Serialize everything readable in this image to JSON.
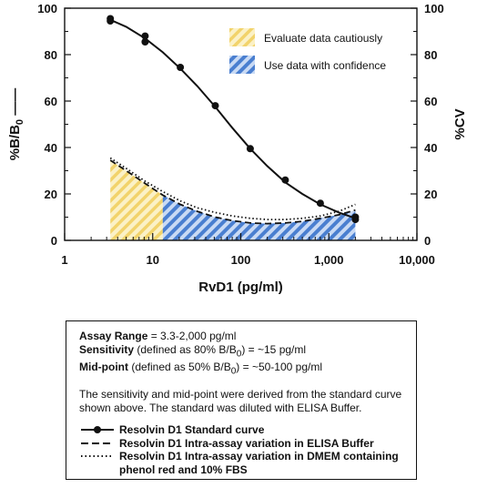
{
  "chart_data": {
    "type": "line",
    "x_scale": "log",
    "xlim": [
      1,
      10000
    ],
    "x_ticks": [
      "1",
      "10",
      "100",
      "1,000",
      "10,000"
    ],
    "x_tick_values": [
      1,
      10,
      100,
      1000,
      10000
    ],
    "xlabel": "RvD1 (pg/ml)",
    "ylabel_left_main": "%B/B",
    "ylabel_left_sub": "0",
    "ylabel_left_suffix": " ——",
    "ylabel_right": "%CV",
    "ylim": [
      0,
      100
    ],
    "y_ticks": [
      "0",
      "20",
      "40",
      "60",
      "80",
      "100"
    ],
    "y_tick_values": [
      0,
      20,
      40,
      60,
      80,
      100
    ],
    "standard_points": [
      {
        "x": 3.3,
        "y": 95.5
      },
      {
        "x": 3.3,
        "y": 94.5
      },
      {
        "x": 8.2,
        "y": 88.0
      },
      {
        "x": 8.2,
        "y": 85.5
      },
      {
        "x": 20.6,
        "y": 74.5
      },
      {
        "x": 51.4,
        "y": 58.0
      },
      {
        "x": 128,
        "y": 39.5
      },
      {
        "x": 320,
        "y": 26.0
      },
      {
        "x": 800,
        "y": 16.0
      },
      {
        "x": 2000,
        "y": 10.0
      },
      {
        "x": 2000,
        "y": 9.0
      }
    ],
    "standard_curve": [
      {
        "x": 3.3,
        "y": 95.0
      },
      {
        "x": 5,
        "y": 92.0
      },
      {
        "x": 8.2,
        "y": 87.0
      },
      {
        "x": 13,
        "y": 81.0
      },
      {
        "x": 20.6,
        "y": 74.0
      },
      {
        "x": 32,
        "y": 66.5
      },
      {
        "x": 51.4,
        "y": 57.5
      },
      {
        "x": 80,
        "y": 48.5
      },
      {
        "x": 128,
        "y": 39.5
      },
      {
        "x": 200,
        "y": 32.0
      },
      {
        "x": 320,
        "y": 25.0
      },
      {
        "x": 500,
        "y": 20.0
      },
      {
        "x": 800,
        "y": 15.5
      },
      {
        "x": 1300,
        "y": 12.0
      },
      {
        "x": 2000,
        "y": 9.5
      }
    ],
    "series": [
      {
        "name": "Resolvin D1 Intra-assay variation in ELISA Buffer",
        "style": "dashed",
        "points": [
          {
            "x": 3.3,
            "y": 34.5
          },
          {
            "x": 5,
            "y": 30.0
          },
          {
            "x": 8.2,
            "y": 24.5
          },
          {
            "x": 13,
            "y": 19.5
          },
          {
            "x": 20.6,
            "y": 15.5
          },
          {
            "x": 32,
            "y": 12.5
          },
          {
            "x": 51.4,
            "y": 10.0
          },
          {
            "x": 80,
            "y": 8.5
          },
          {
            "x": 128,
            "y": 7.5
          },
          {
            "x": 200,
            "y": 7.2
          },
          {
            "x": 320,
            "y": 7.5
          },
          {
            "x": 500,
            "y": 8.2
          },
          {
            "x": 800,
            "y": 9.5
          },
          {
            "x": 1300,
            "y": 11.0
          },
          {
            "x": 2000,
            "y": 13.0
          }
        ]
      },
      {
        "name": "Resolvin D1 Intra-assay variation in DMEM containing phenol red and 10% FBS",
        "style": "dotted",
        "points": [
          {
            "x": 3.3,
            "y": 35.5
          },
          {
            "x": 5,
            "y": 31.0
          },
          {
            "x": 8.2,
            "y": 25.5
          },
          {
            "x": 13,
            "y": 21.0
          },
          {
            "x": 20.6,
            "y": 17.0
          },
          {
            "x": 32,
            "y": 14.0
          },
          {
            "x": 51.4,
            "y": 12.0
          },
          {
            "x": 80,
            "y": 10.5
          },
          {
            "x": 128,
            "y": 9.5
          },
          {
            "x": 200,
            "y": 9.0
          },
          {
            "x": 320,
            "y": 9.0
          },
          {
            "x": 500,
            "y": 9.5
          },
          {
            "x": 800,
            "y": 10.5
          },
          {
            "x": 1300,
            "y": 12.5
          },
          {
            "x": 2000,
            "y": 15.5
          }
        ]
      }
    ],
    "regions": [
      {
        "label": "Evaluate data cautiously",
        "x_from": 3.3,
        "x_to": 13,
        "color": "#f6dc8a"
      },
      {
        "label": "Use data with confidence",
        "x_from": 13,
        "x_to": 2000,
        "color": "#4a7fd0"
      }
    ],
    "region_boundary": [
      {
        "x": 3.3,
        "y": 34.5
      },
      {
        "x": 5,
        "y": 30.0
      },
      {
        "x": 8.2,
        "y": 24.5
      },
      {
        "x": 13,
        "y": 19.5
      },
      {
        "x": 20.6,
        "y": 15.5
      },
      {
        "x": 32,
        "y": 12.5
      },
      {
        "x": 51.4,
        "y": 10.0
      },
      {
        "x": 80,
        "y": 8.5
      },
      {
        "x": 128,
        "y": 7.5
      },
      {
        "x": 200,
        "y": 7.2
      },
      {
        "x": 320,
        "y": 7.5
      },
      {
        "x": 500,
        "y": 8.2
      },
      {
        "x": 800,
        "y": 9.5
      },
      {
        "x": 1300,
        "y": 11.0
      },
      {
        "x": 2000,
        "y": 13.0
      }
    ],
    "legend_placement": "top-right",
    "grid": false
  },
  "info_box": {
    "assay_range_label": "Assay Range",
    "assay_range_value": " = 3.3-2,000 pg/ml",
    "sensitivity_label": "Sensitivity",
    "sensitivity_value_pre": " (defined as 80% B/B",
    "sensitivity_sub": "0",
    "sensitivity_value_post": ") =  ~15 pg/ml",
    "midpoint_label": "Mid-point",
    "midpoint_value_pre": " (defined as 50% B/B",
    "midpoint_sub": "0",
    "midpoint_value_post": ") =  ~50-100 pg/ml",
    "note": "The sensitivity and mid-point were derived from the standard curve shown above. The standard was diluted with ELISA Buffer.",
    "legend": [
      {
        "label": "Resolvin D1 Standard curve",
        "style": "solid-marker"
      },
      {
        "label": "Resolvin D1 Intra-assay variation in ELISA Buffer",
        "style": "dashed"
      },
      {
        "label": "Resolvin D1 Intra-assay variation in DMEM containing phenol red and 10% FBS",
        "style": "dotted"
      }
    ]
  }
}
